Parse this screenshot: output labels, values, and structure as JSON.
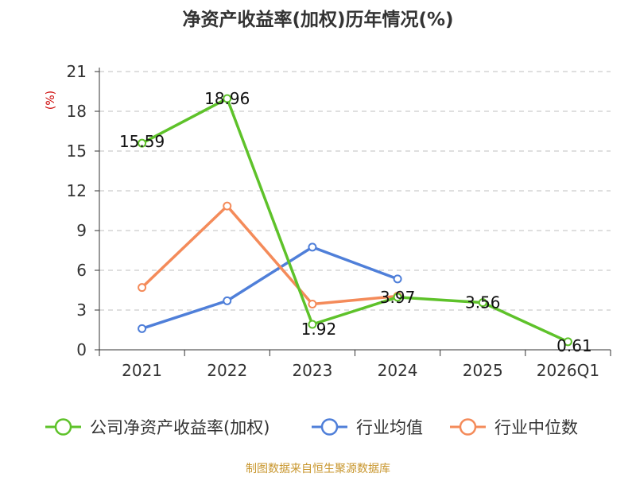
{
  "chart_data": {
    "type": "line",
    "title": "净资产收益率(加权)历年情况(%)",
    "ylabel": "(%)",
    "xlabel": "",
    "categories": [
      "2021",
      "2022",
      "2023",
      "2024",
      "2025",
      "2026Q1"
    ],
    "ylim": [
      0,
      21
    ],
    "yticks": [
      0,
      3,
      6,
      9,
      12,
      15,
      18,
      21
    ],
    "grid": true,
    "legend_position": "bottom",
    "series": [
      {
        "name": "公司净资产收益率(加权)",
        "color": "#5ec22a",
        "values": [
          15.59,
          18.96,
          1.92,
          3.97,
          3.56,
          0.61
        ],
        "labels": [
          "15.59",
          "18.96",
          "1.92",
          "3.97",
          "3.56",
          "0.61"
        ]
      },
      {
        "name": "行业均值",
        "color": "#4f7fd9",
        "values": [
          1.6,
          3.7,
          7.75,
          5.35,
          null,
          null
        ]
      },
      {
        "name": "行业中位数",
        "color": "#f48b5a",
        "values": [
          4.7,
          10.85,
          3.45,
          4.05,
          null,
          null
        ]
      }
    ]
  },
  "source": "制图数据来自恒生聚源数据库"
}
